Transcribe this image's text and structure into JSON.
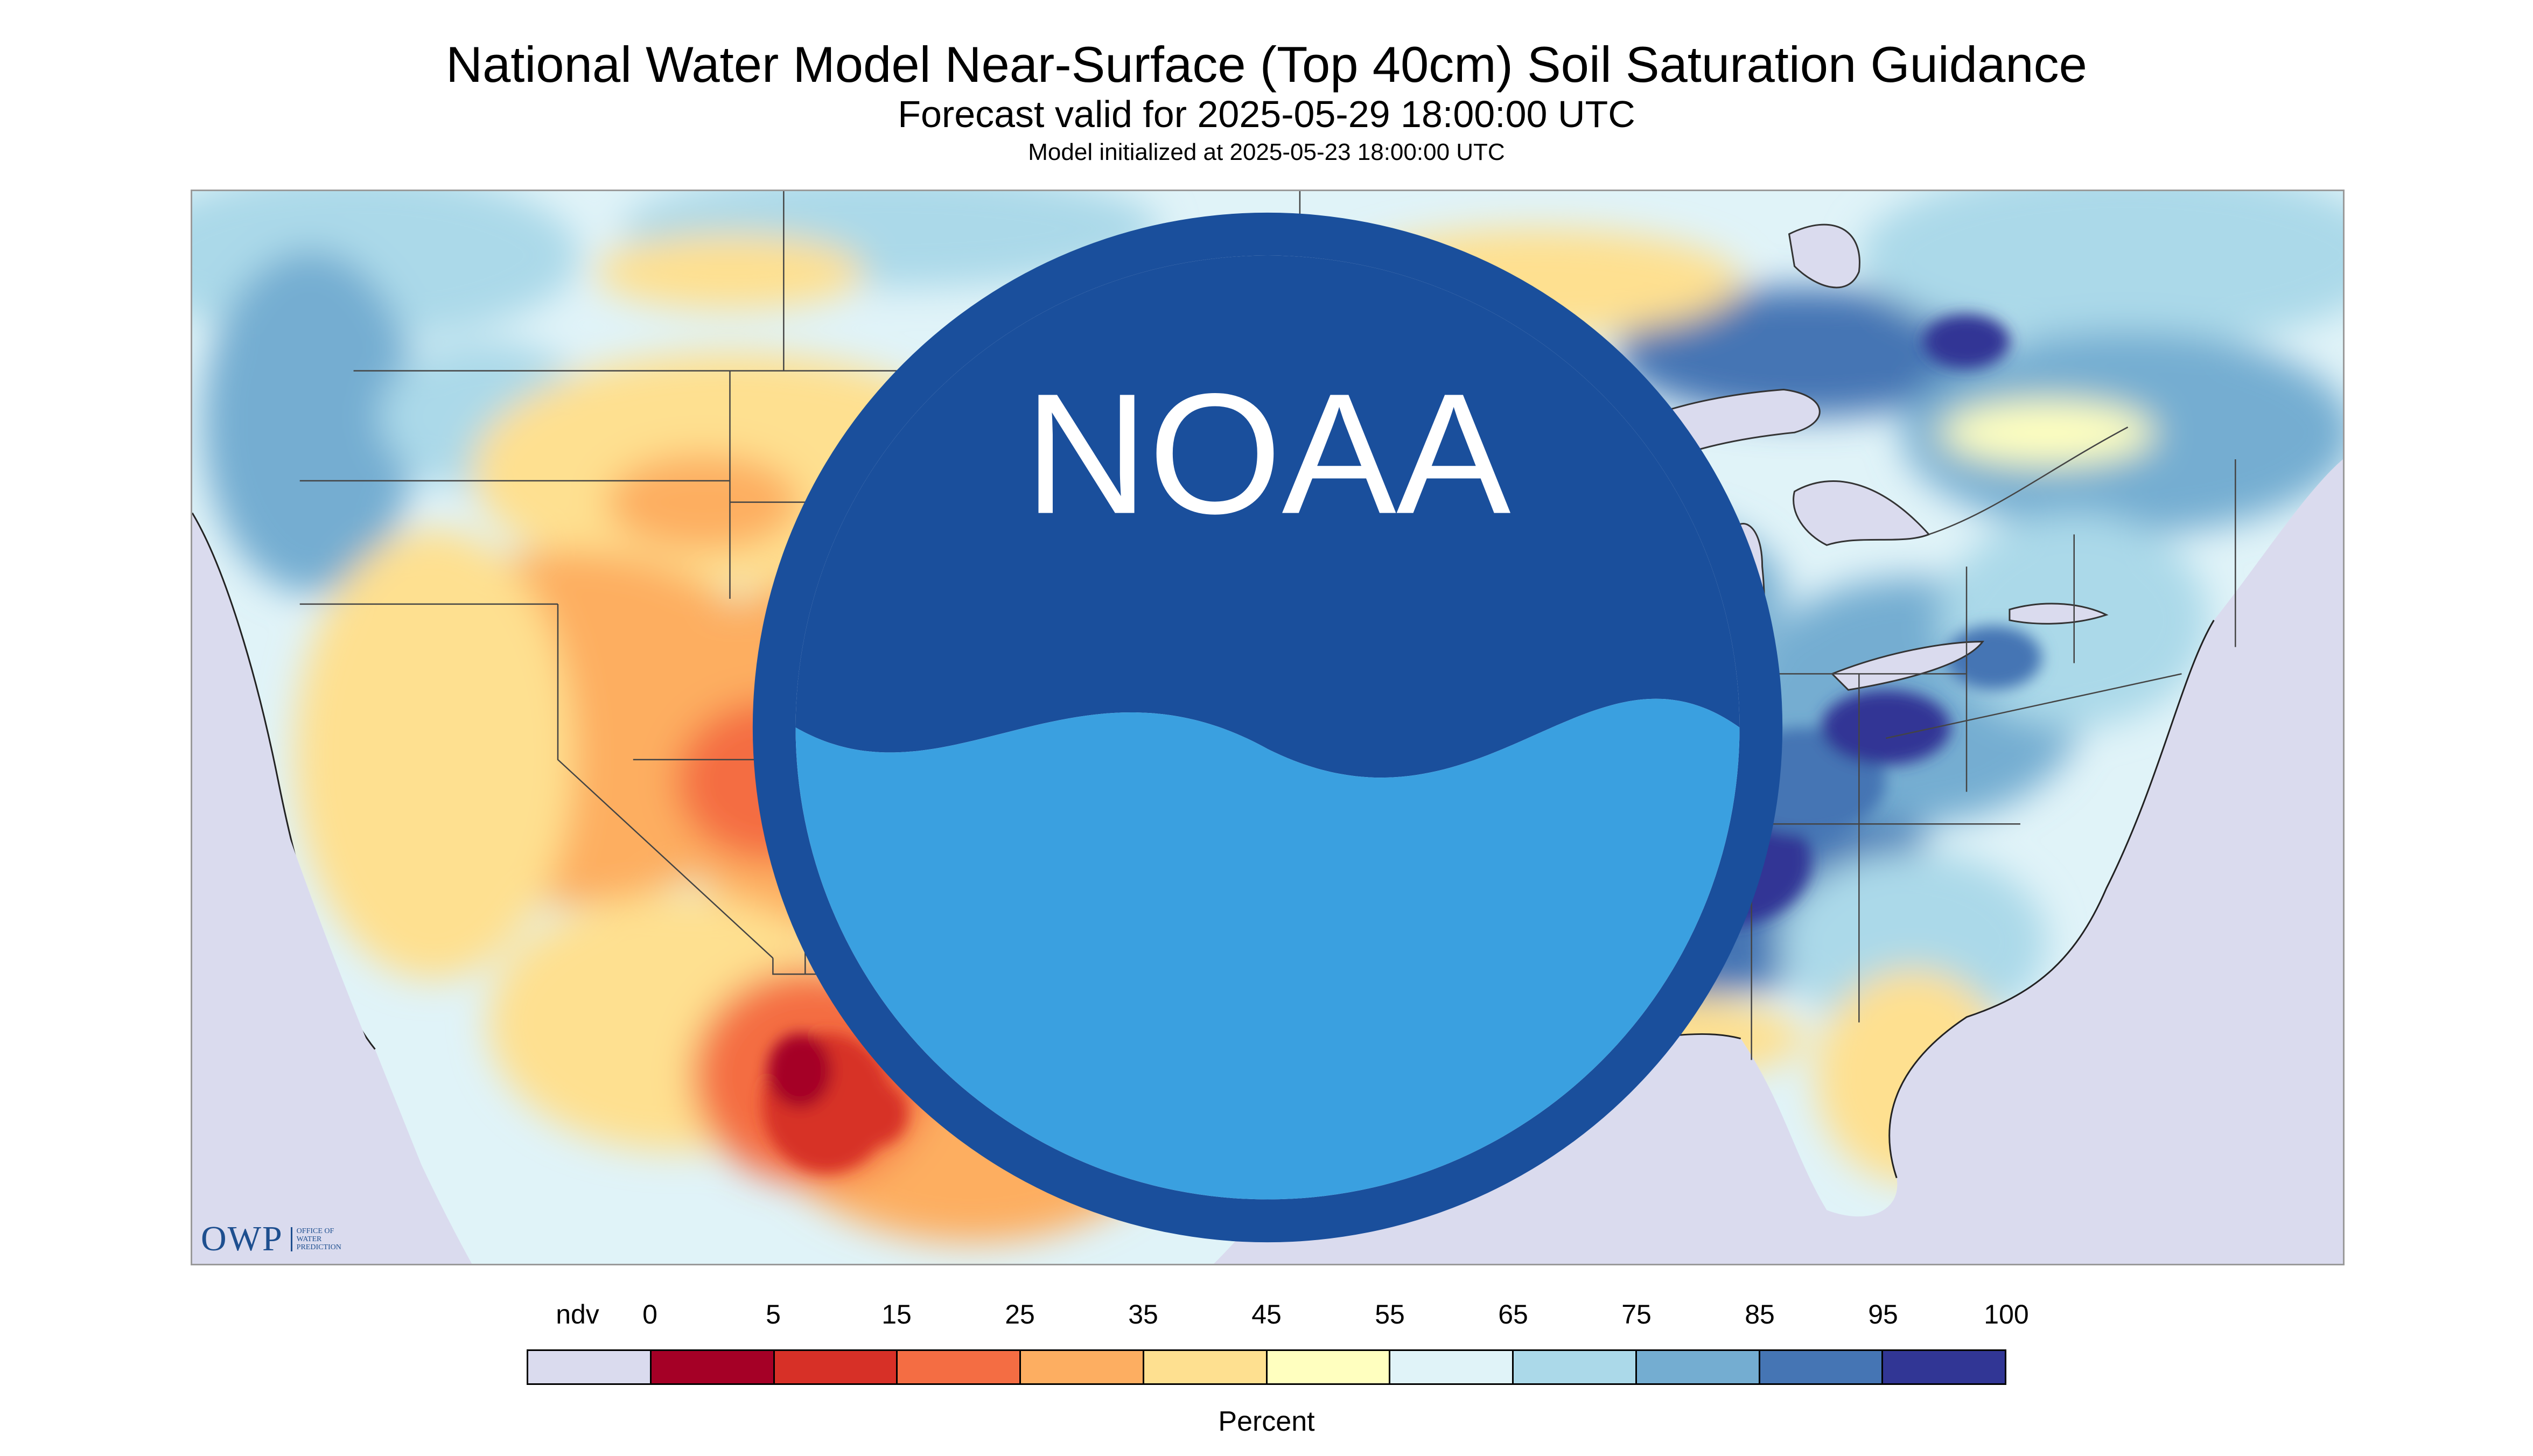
{
  "header": {
    "title": "National Water Model Near-Surface (Top 40cm) Soil Saturation Guidance",
    "forecast": "Forecast valid for 2025-05-29 18:00:00 UTC",
    "init": "Model initialized at 2025-05-23 18:00:00 UTC"
  },
  "logos": {
    "owp_text": "OWP",
    "owp_sub": [
      "OFFICE OF",
      "WATER",
      "PREDICTION"
    ],
    "noaa": "NOAA"
  },
  "legend": {
    "units": "Percent",
    "labels": [
      "ndv",
      "0",
      "5",
      "15",
      "25",
      "35",
      "45",
      "55",
      "65",
      "75",
      "85",
      "95",
      "100"
    ],
    "colors": [
      "#dadbee",
      "#a50026",
      "#d73027",
      "#f46d43",
      "#fdae61",
      "#fee090",
      "#ffffbf",
      "#e0f3f8",
      "#abd9e9",
      "#74add1",
      "#4575b4",
      "#313695"
    ]
  },
  "map": {
    "land_default": "#e0f3f8",
    "water": "#dadbee",
    "borders": "#4a4a4a"
  }
}
